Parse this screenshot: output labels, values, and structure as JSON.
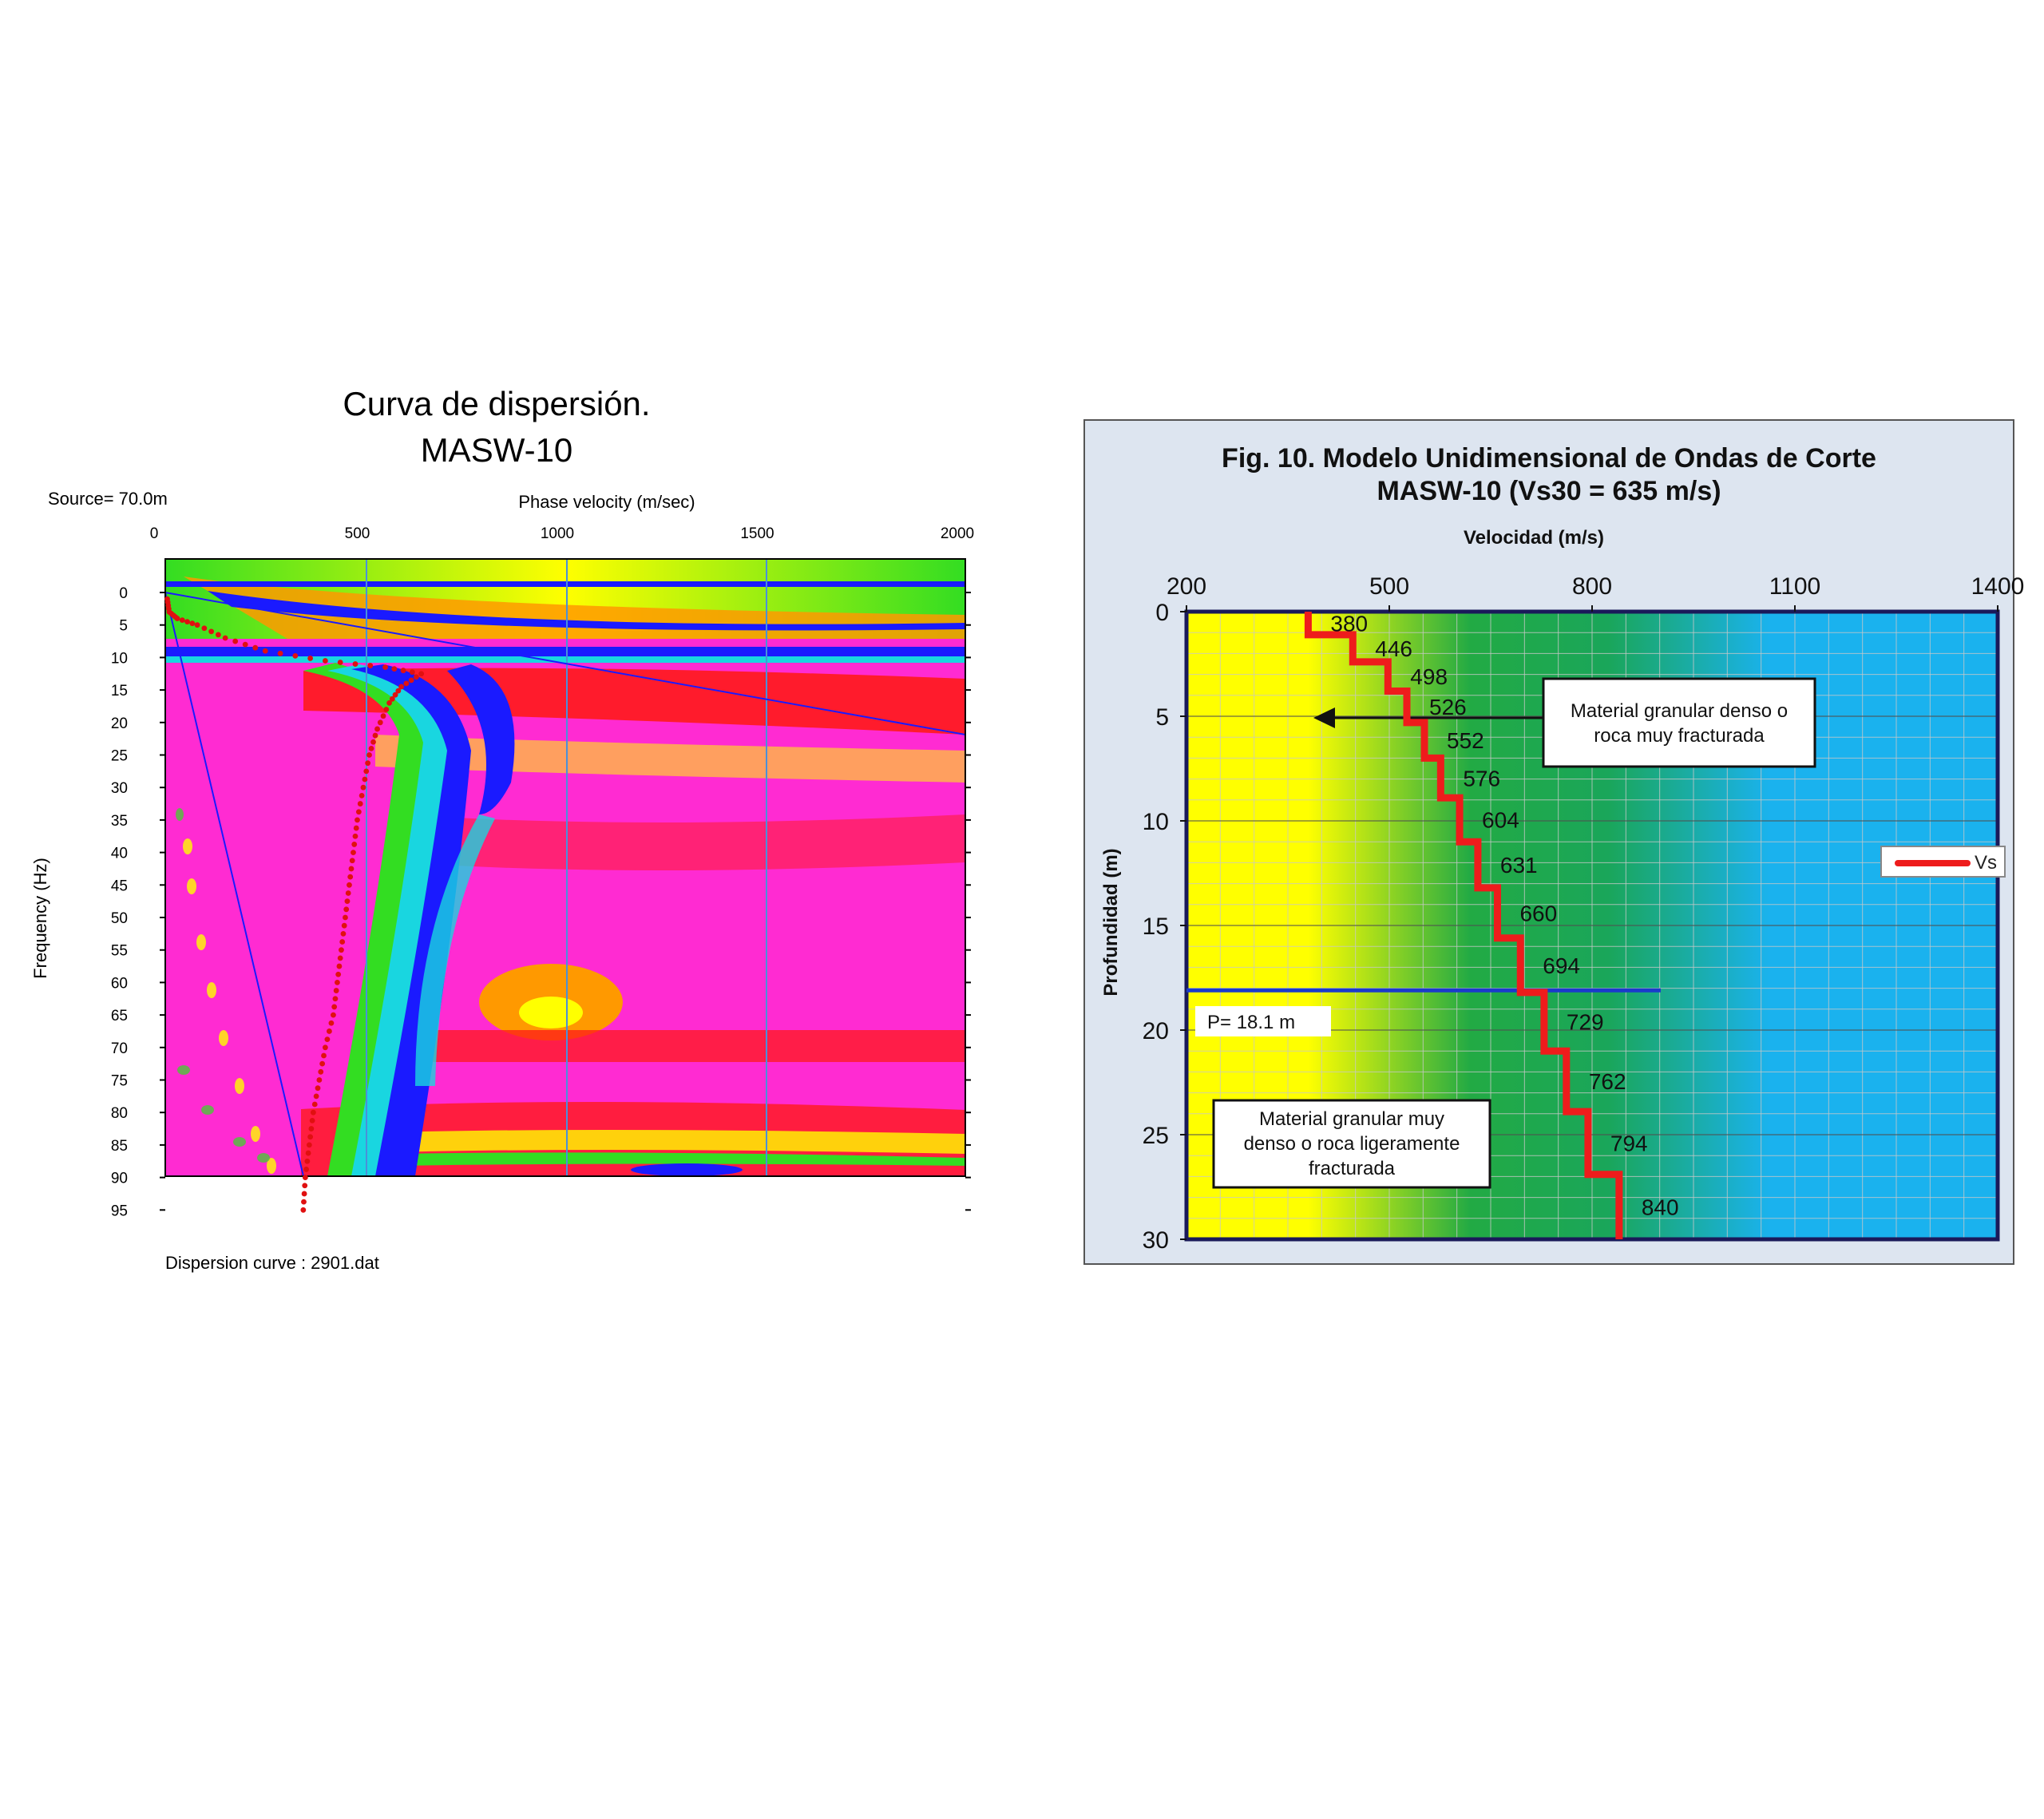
{
  "chart_data": [
    {
      "type": "heatmap",
      "title": "Curva de dispersión.",
      "subtitle": "MASW-10",
      "source_label": "Source= 70.0m",
      "xlabel": "Phase velocity (m/sec)",
      "ylabel": "Frequency (Hz)",
      "footer": "Dispersion curve : 2901.dat",
      "x_ticks": [
        "0",
        "500",
        "1000",
        "1500",
        "2000"
      ],
      "y_ticks": [
        "0",
        "5",
        "10",
        "15",
        "20",
        "25",
        "30",
        "35",
        "40",
        "45",
        "50",
        "55",
        "60",
        "65",
        "70",
        "75",
        "80",
        "85",
        "90",
        "95"
      ],
      "xlim": [
        0,
        2000
      ],
      "ylim": [
        0,
        95
      ],
      "colors": {
        "low": "#1a1aff",
        "mid": "#19d6e0",
        "green": "#33dd22",
        "yellow": "#ffff00",
        "orange": "#ff9900",
        "red": "#ff1a1a",
        "magenta": "#ff2bd2"
      },
      "dispersion_points": [
        {
          "x": 5,
          "y": 1
        },
        {
          "x": 10,
          "y": 3
        },
        {
          "x": 30,
          "y": 4
        },
        {
          "x": 80,
          "y": 5
        },
        {
          "x": 150,
          "y": 7
        },
        {
          "x": 250,
          "y": 9
        },
        {
          "x": 400,
          "y": 10.5
        },
        {
          "x": 550,
          "y": 11.5
        },
        {
          "x": 640,
          "y": 12.5
        },
        {
          "x": 590,
          "y": 14.5
        },
        {
          "x": 560,
          "y": 17
        },
        {
          "x": 530,
          "y": 21
        },
        {
          "x": 510,
          "y": 25
        },
        {
          "x": 495,
          "y": 30
        },
        {
          "x": 480,
          "y": 35
        },
        {
          "x": 470,
          "y": 40
        },
        {
          "x": 460,
          "y": 45
        },
        {
          "x": 450,
          "y": 50
        },
        {
          "x": 440,
          "y": 55
        },
        {
          "x": 430,
          "y": 60
        },
        {
          "x": 420,
          "y": 65
        },
        {
          "x": 400,
          "y": 70
        },
        {
          "x": 385,
          "y": 75
        },
        {
          "x": 370,
          "y": 80
        },
        {
          "x": 360,
          "y": 85
        },
        {
          "x": 350,
          "y": 90
        },
        {
          "x": 345,
          "y": 95
        }
      ]
    },
    {
      "type": "line",
      "title": "Fig. 10. Modelo Unidimensional de Ondas de Corte",
      "subtitle": "MASW-10 (Vs30 = 635 m/s)",
      "xlabel": "Velocidad (m/s)",
      "ylabel": "Profundidad (m)",
      "x_ticks": [
        "200",
        "500",
        "800",
        "1100",
        "1400"
      ],
      "y_ticks": [
        "0",
        "5",
        "10",
        "15",
        "20",
        "25",
        "30"
      ],
      "xlim": [
        200,
        1400
      ],
      "ylim": [
        0,
        30
      ],
      "y_inverted": true,
      "grid": true,
      "legend": "right",
      "series": [
        {
          "name": "Vs",
          "color": "#ee1c1c",
          "layers": [
            {
              "top": 0,
              "bottom": 1.1,
              "vs": 380
            },
            {
              "top": 1.1,
              "bottom": 2.4,
              "vs": 446
            },
            {
              "top": 2.4,
              "bottom": 3.8,
              "vs": 498
            },
            {
              "top": 3.8,
              "bottom": 5.3,
              "vs": 526
            },
            {
              "top": 5.3,
              "bottom": 7.0,
              "vs": 552
            },
            {
              "top": 7.0,
              "bottom": 8.9,
              "vs": 576
            },
            {
              "top": 8.9,
              "bottom": 11.0,
              "vs": 604
            },
            {
              "top": 11.0,
              "bottom": 13.2,
              "vs": 631
            },
            {
              "top": 13.2,
              "bottom": 15.6,
              "vs": 660
            },
            {
              "top": 15.6,
              "bottom": 18.2,
              "vs": 694
            },
            {
              "top": 18.2,
              "bottom": 21.0,
              "vs": 729
            },
            {
              "top": 21.0,
              "bottom": 23.9,
              "vs": 762
            },
            {
              "top": 23.9,
              "bottom": 26.9,
              "vs": 794
            },
            {
              "top": 26.9,
              "bottom": 30.0,
              "vs": 840
            }
          ]
        }
      ],
      "p_line_depth": 18.1,
      "p_label": "P= 18.1 m",
      "annotations": [
        {
          "lines": [
            "Material granular denso o",
            "roca muy fracturada"
          ]
        },
        {
          "lines": [
            "Material granular muy",
            "denso o roca ligeramente",
            "fracturada"
          ]
        }
      ],
      "background_colors": {
        "yellow": "#ffff00",
        "green": "#1aa65a",
        "blue": "#1ab2ee"
      }
    }
  ]
}
